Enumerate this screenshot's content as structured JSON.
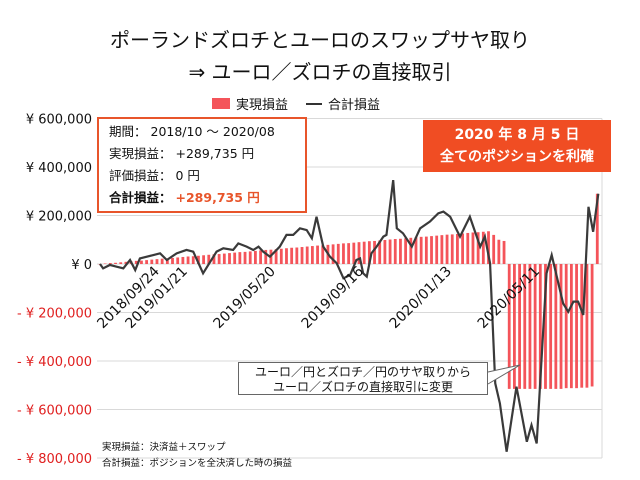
{
  "title_line1": "ポーランドズロチとユーロのスワップサヤ取り",
  "title_line2": "⇒ ユーロ／ズロチの直接取引",
  "legend": {
    "bar": "実現損益",
    "line": "合計損益"
  },
  "colors": {
    "bar": "#f4545a",
    "line": "#3a3a3a",
    "accent": "#e8552b",
    "badge": "#f04d23"
  },
  "info_box": {
    "period_label": "期間：",
    "period_value": "2018/10 ～ 2020/08",
    "realized_label": "実現損益：",
    "realized_value": "+289,735 円",
    "unrealized_label": "評価損益：",
    "unrealized_value": "0 円",
    "total_label": "合計損益：",
    "total_value": "+289,735 円"
  },
  "badge": {
    "line1": "2020 年 8 月 5 日",
    "line2": "全てのポジションを利確"
  },
  "annotation": {
    "line1": "ユーロ／円とズロチ／円のサヤ取りから",
    "line2": "ユーロ／ズロチの直接取引に変更"
  },
  "footnotes": [
    "実現損益：決済益＋スワップ",
    "合計損益：ポジションを全決済した時の損益"
  ],
  "chart_data": {
    "type": "bar+line",
    "x_unit": "weeks since 2018/09/24",
    "ylim": [
      -800000,
      600000
    ],
    "yticks": [
      600000,
      400000,
      200000,
      0,
      -200000,
      -400000,
      -600000,
      -800000
    ],
    "ytick_labels": [
      "¥ 600,000",
      "¥ 400,000",
      "¥ 200,000",
      "¥ 0",
      "- ¥ 200,000",
      "- ¥ 400,000",
      "- ¥ 600,000",
      "- ¥ 800,000"
    ],
    "xtick_weeks": [
      0,
      17,
      34,
      51,
      68,
      85
    ],
    "xtick_labels": [
      "2018/09/24",
      "2019/01/21",
      "2019/05/20",
      "2019/09/16",
      "2020/01/13",
      "2020/05/11"
    ],
    "grid": true,
    "legend_position": "top",
    "series": [
      {
        "name": "実現損益",
        "type": "bar",
        "values": [
          0,
          2000,
          4000,
          5000,
          7000,
          9000,
          11000,
          13000,
          14000,
          16000,
          18000,
          20000,
          22000,
          23000,
          25000,
          27000,
          29000,
          31000,
          32000,
          34000,
          36000,
          38000,
          40000,
          41000,
          43000,
          45000,
          47000,
          49000,
          50000,
          52000,
          54000,
          56000,
          58000,
          59000,
          61000,
          63000,
          65000,
          67000,
          68000,
          70000,
          72000,
          74000,
          76000,
          77000,
          79000,
          81000,
          83000,
          85000,
          86000,
          88000,
          90000,
          92000,
          94000,
          95000,
          97000,
          99000,
          101000,
          103000,
          104000,
          106000,
          108000,
          110000,
          112000,
          113000,
          115000,
          117000,
          119000,
          121000,
          122000,
          124000,
          126000,
          128000,
          130000,
          131000,
          133000,
          135000,
          120000,
          100000,
          95000,
          -515000,
          -515000,
          -515000,
          -515000,
          -515000,
          -515000,
          -515000,
          -515000,
          -515000,
          -515000,
          -515000,
          -512000,
          -512000,
          -512000,
          -510000,
          -510000,
          -505000,
          289735
        ]
      },
      {
        "name": "合計損益",
        "type": "line",
        "points": [
          [
            0,
            0
          ],
          [
            0.6,
            -18000
          ],
          [
            1.9,
            -4000
          ],
          [
            3.2,
            -11000
          ],
          [
            4.5,
            -18000
          ],
          [
            5.8,
            16500
          ],
          [
            6.8,
            -25000
          ],
          [
            7.7,
            23000
          ],
          [
            10.3,
            37000
          ],
          [
            11.6,
            44000
          ],
          [
            12.9,
            16500
          ],
          [
            14.8,
            44000
          ],
          [
            16.7,
            58000
          ],
          [
            18,
            51000
          ],
          [
            19.9,
            -38500
          ],
          [
            22.5,
            51000
          ],
          [
            23.8,
            65000
          ],
          [
            25.7,
            58000
          ],
          [
            26.7,
            85000
          ],
          [
            28.3,
            71500
          ],
          [
            29.6,
            58000
          ],
          [
            30.6,
            71500
          ],
          [
            31.5,
            51000
          ],
          [
            32.8,
            30000
          ],
          [
            34.7,
            71500
          ],
          [
            36,
            120000
          ],
          [
            37.3,
            120000
          ],
          [
            38.6,
            147000
          ],
          [
            39.9,
            140000
          ],
          [
            40.9,
            106000
          ],
          [
            41.8,
            195000
          ],
          [
            43.1,
            71500
          ],
          [
            44.4,
            30000
          ],
          [
            45.7,
            3000
          ],
          [
            47,
            -59000
          ],
          [
            48.3,
            -45000
          ],
          [
            49.5,
            16500
          ],
          [
            50.2,
            23000
          ],
          [
            50.8,
            -38500
          ],
          [
            51.5,
            -52000
          ],
          [
            52.4,
            44000
          ],
          [
            53.4,
            71500
          ],
          [
            54.7,
            113000
          ],
          [
            55.3,
            120000
          ],
          [
            56.6,
            346000
          ],
          [
            57.3,
            147000
          ],
          [
            58.5,
            126500
          ],
          [
            60.2,
            71500
          ],
          [
            61.8,
            147000
          ],
          [
            63.7,
            175000
          ],
          [
            65.3,
            209000
          ],
          [
            66.3,
            216000
          ],
          [
            67.6,
            195000
          ],
          [
            69.5,
            113000
          ],
          [
            71.4,
            195000
          ],
          [
            73.4,
            71500
          ],
          [
            74.3,
            113000
          ],
          [
            75.3,
            3000
          ],
          [
            76.3,
            -492000
          ],
          [
            77.2,
            -575000
          ],
          [
            78.5,
            -774000
          ],
          [
            80.4,
            -506000
          ],
          [
            82.4,
            -733000
          ],
          [
            83.3,
            -664000
          ],
          [
            84.3,
            -740000
          ],
          [
            86.2,
            -38500
          ],
          [
            87.2,
            37000
          ],
          [
            89.4,
            -162000
          ],
          [
            90.4,
            -197000
          ],
          [
            91.4,
            -155000
          ],
          [
            92.3,
            -155000
          ],
          [
            93.3,
            -210000
          ],
          [
            94.3,
            236000
          ],
          [
            95.2,
            133000
          ],
          [
            96.2,
            289735
          ]
        ]
      }
    ]
  }
}
